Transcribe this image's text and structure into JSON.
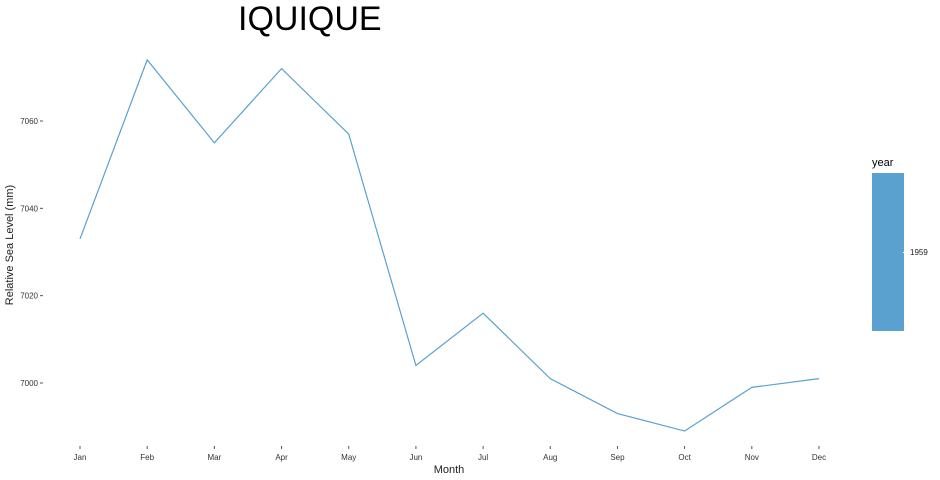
{
  "chart_data": {
    "type": "line",
    "title": "IQUIQUE",
    "xlabel": "Month",
    "ylabel": "Relative Sea Level (mm)",
    "categories": [
      "Jan",
      "Feb",
      "Mar",
      "Apr",
      "May",
      "Jun",
      "Jul",
      "Aug",
      "Sep",
      "Oct",
      "Nov",
      "Dec"
    ],
    "series": [
      {
        "values": [
          7033,
          7074,
          7055,
          7072,
          7057,
          7004,
          7016,
          7001,
          6993,
          6989,
          6999,
          7001
        ]
      }
    ],
    "ylim": [
      6987.4,
      7077.3
    ],
    "yticks": [
      7000,
      7020,
      7040,
      7060
    ],
    "grid": false,
    "line_color": "#5aa1d0",
    "legend": {
      "title": "year",
      "labels": [
        "1959"
      ],
      "color": "#5aa1d0",
      "placement": "right"
    }
  }
}
